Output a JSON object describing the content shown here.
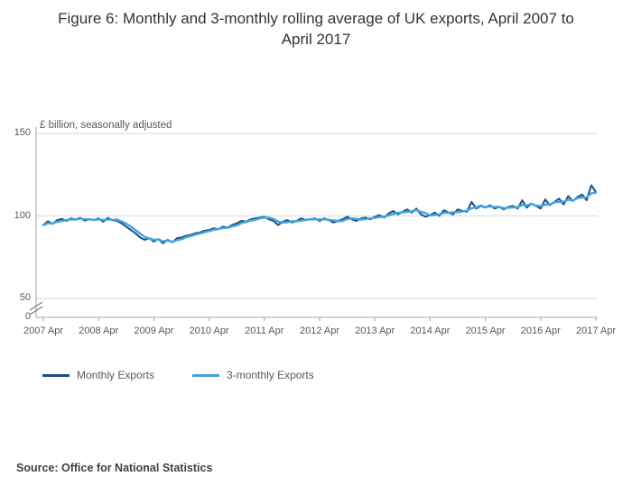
{
  "title": "Figure 6: Monthly and 3-monthly rolling average of UK exports, April 2007 to April 2017",
  "unit_label": "£ billion, seasonally adjusted",
  "source": "Source: Office for National Statistics",
  "legend": [
    {
      "label": "Monthly Exports",
      "color": "#1c4e80"
    },
    {
      "label": "3-monthly Exports",
      "color": "#41a3dc"
    }
  ],
  "chart_data": {
    "type": "line",
    "title": "Figure 6: Monthly and 3-monthly rolling average of UK exports, April 2007 to April 2017",
    "ylabel": "£ billion, seasonally adjusted",
    "y_ticks": [
      0,
      50,
      100,
      150
    ],
    "y_axis_break_between": [
      0,
      50
    ],
    "ylim": [
      0,
      150
    ],
    "grid": true,
    "legend_position": "bottom-left",
    "x_start": "2007 Apr",
    "x_end": "2017 Apr",
    "x_interval": "monthly",
    "x_tick_labels": [
      "2007 Apr",
      "2008 Apr",
      "2009 Apr",
      "2010 Apr",
      "2011 Apr",
      "2012 Apr",
      "2013 Apr",
      "2014 Apr",
      "2015 Apr",
      "2016 Apr",
      "2017 Apr"
    ],
    "series": [
      {
        "name": "Monthly Exports",
        "color": "#1c4e80",
        "values": [
          94.5,
          96.8,
          95.2,
          97.5,
          98.2,
          97.0,
          98.5,
          97.8,
          98.8,
          97.2,
          98.0,
          97.5,
          98.5,
          96.5,
          98.8,
          97.5,
          97.0,
          95.5,
          93.5,
          91.5,
          89.5,
          87.0,
          85.5,
          86.5,
          84.5,
          86.0,
          83.5,
          85.5,
          84.0,
          86.5,
          87.0,
          88.0,
          88.5,
          89.5,
          90.0,
          91.0,
          91.5,
          92.5,
          92.0,
          93.5,
          93.0,
          94.5,
          95.5,
          97.0,
          96.5,
          98.0,
          98.5,
          99.0,
          99.5,
          98.0,
          97.0,
          94.5,
          96.5,
          97.5,
          96.0,
          97.0,
          98.5,
          97.5,
          98.0,
          98.5,
          97.0,
          98.5,
          97.5,
          96.0,
          97.0,
          98.0,
          99.5,
          98.0,
          97.0,
          98.5,
          99.0,
          98.0,
          99.5,
          100.5,
          99.0,
          101.5,
          103.0,
          101.0,
          102.5,
          104.0,
          102.0,
          104.5,
          101.0,
          99.5,
          100.5,
          102.0,
          100.0,
          103.5,
          102.0,
          101.0,
          104.0,
          103.0,
          102.5,
          108.5,
          104.5,
          106.0,
          105.0,
          106.5,
          104.5,
          105.5,
          104.0,
          105.5,
          106.0,
          104.5,
          109.5,
          105.0,
          107.5,
          106.0,
          104.5,
          110.0,
          106.5,
          108.5,
          110.5,
          107.0,
          112.0,
          109.0,
          111.5,
          113.0,
          109.5,
          118.5,
          114.5
        ]
      },
      {
        "name": "3-monthly Exports",
        "color": "#41a3dc",
        "derived": "3-month rolling average of Monthly Exports"
      }
    ]
  }
}
